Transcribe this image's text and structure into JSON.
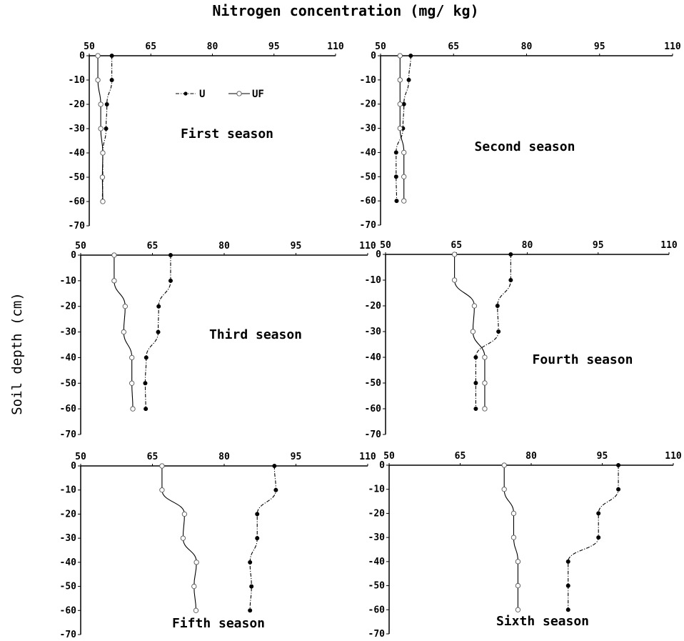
{
  "figure_title": "Nitrogen concentration (mg/ kg)",
  "ylabel": "Soil depth (cm)",
  "chart_data": [
    {
      "type": "line",
      "title": "First season",
      "x_ticks": [
        50,
        65,
        80,
        95,
        110
      ],
      "y_ticks": [
        0,
        -10,
        -20,
        -30,
        -40,
        -50,
        -60,
        -70
      ],
      "xlim": [
        50,
        110
      ],
      "ylim": [
        -70,
        0
      ],
      "x_axis_position": "top",
      "grid": false,
      "legend": [
        "U",
        "UF"
      ],
      "legend_position": "top-center",
      "series": [
        {
          "name": "U",
          "style": "dash-dot, filled markers",
          "x": [
            55.5,
            55.5,
            54.3,
            54.1,
            53.3,
            53.3,
            53.2
          ],
          "y": [
            0,
            -10,
            -20,
            -30,
            -40,
            -50,
            -60
          ]
        },
        {
          "name": "UF",
          "style": "solid, hollow markers",
          "x": [
            52.1,
            52.1,
            52.8,
            52.8,
            53.3,
            53.2,
            53.3
          ],
          "y": [
            0,
            -10,
            -20,
            -30,
            -40,
            -50,
            -60
          ]
        }
      ]
    },
    {
      "type": "line",
      "title": "Second season",
      "x_ticks": [
        50,
        65,
        80,
        95,
        110
      ],
      "y_ticks": [
        0,
        -10,
        -20,
        -30,
        -40,
        -50,
        -60,
        -70
      ],
      "xlim": [
        50,
        110
      ],
      "ylim": [
        -70,
        0
      ],
      "x_axis_position": "top",
      "grid": false,
      "series": [
        {
          "name": "U",
          "style": "dash-dot, filled markers",
          "x": [
            56.2,
            55.8,
            54.8,
            54.6,
            53.2,
            53.2,
            53.3
          ],
          "y": [
            0,
            -10,
            -20,
            -30,
            -40,
            -50,
            -60
          ]
        },
        {
          "name": "UF",
          "style": "solid, hollow markers",
          "x": [
            54.0,
            54.0,
            54.0,
            54.0,
            54.8,
            54.8,
            54.8
          ],
          "y": [
            0,
            -10,
            -20,
            -30,
            -40,
            -50,
            -60
          ]
        }
      ]
    },
    {
      "type": "line",
      "title": "Third season",
      "x_ticks": [
        50,
        65,
        80,
        95,
        110
      ],
      "y_ticks": [
        0,
        -10,
        -20,
        -30,
        -40,
        -50,
        -60,
        -70
      ],
      "xlim": [
        50,
        110
      ],
      "ylim": [
        -70,
        0
      ],
      "x_axis_position": "top",
      "grid": false,
      "series": [
        {
          "name": "U",
          "style": "dash-dot, filled markers",
          "x": [
            68.8,
            68.8,
            66.3,
            66.2,
            63.7,
            63.5,
            63.6
          ],
          "y": [
            0,
            -10,
            -20,
            -30,
            -40,
            -50,
            -60
          ]
        },
        {
          "name": "UF",
          "style": "solid, hollow markers",
          "x": [
            57.0,
            57.0,
            59.3,
            59.0,
            60.7,
            60.7,
            60.9
          ],
          "y": [
            0,
            -10,
            -20,
            -30,
            -40,
            -50,
            -60
          ]
        }
      ]
    },
    {
      "type": "line",
      "title": "Fourth season",
      "x_ticks": [
        50,
        65,
        80,
        95,
        110
      ],
      "y_ticks": [
        0,
        -10,
        -20,
        -30,
        -40,
        -50,
        -60,
        -70
      ],
      "xlim": [
        50,
        110
      ],
      "ylim": [
        -70,
        0
      ],
      "x_axis_position": "top",
      "grid": false,
      "series": [
        {
          "name": "U",
          "style": "dash-dot, filled markers",
          "x": [
            76.5,
            76.5,
            73.7,
            73.9,
            69.1,
            69.1,
            69.1
          ],
          "y": [
            0,
            -10,
            -20,
            -30,
            -40,
            -50,
            -60
          ]
        },
        {
          "name": "UF",
          "style": "solid, hollow markers",
          "x": [
            64.6,
            64.6,
            68.8,
            68.5,
            71.0,
            71.0,
            71.0
          ],
          "y": [
            0,
            -10,
            -20,
            -30,
            -40,
            -50,
            -60
          ]
        }
      ]
    },
    {
      "type": "line",
      "title": "Fifth season",
      "x_ticks": [
        50,
        65,
        80,
        95,
        110
      ],
      "y_ticks": [
        0,
        -10,
        -20,
        -30,
        -40,
        -50,
        -60,
        -70
      ],
      "xlim": [
        50,
        110
      ],
      "ylim": [
        -70,
        0
      ],
      "x_axis_position": "top",
      "grid": false,
      "series": [
        {
          "name": "U",
          "style": "dash-dot, filled markers",
          "x": [
            90.5,
            90.8,
            86.9,
            86.9,
            85.4,
            85.7,
            85.4
          ],
          "y": [
            0,
            -10,
            -20,
            -30,
            -40,
            -50,
            -60
          ]
        },
        {
          "name": "UF",
          "style": "solid, hollow markers",
          "x": [
            67.0,
            67.0,
            71.7,
            71.4,
            74.2,
            73.7,
            74.1
          ],
          "y": [
            0,
            -10,
            -20,
            -30,
            -40,
            -50,
            -60
          ]
        }
      ]
    },
    {
      "type": "line",
      "title": "Sixth season",
      "x_ticks": [
        50,
        65,
        80,
        95,
        110
      ],
      "y_ticks": [
        0,
        -10,
        -20,
        -30,
        -40,
        -50,
        -60,
        -70
      ],
      "xlim": [
        50,
        110
      ],
      "ylim": [
        -70,
        0
      ],
      "x_axis_position": "top",
      "grid": false,
      "series": [
        {
          "name": "U",
          "style": "dash-dot, filled markers",
          "x": [
            98.4,
            98.4,
            94.2,
            94.2,
            87.8,
            87.8,
            87.8
          ],
          "y": [
            0,
            -10,
            -20,
            -30,
            -40,
            -50,
            -60
          ]
        },
        {
          "name": "UF",
          "style": "solid, hollow markers",
          "x": [
            74.3,
            74.3,
            76.3,
            76.3,
            77.2,
            77.2,
            77.2
          ],
          "y": [
            0,
            -10,
            -20,
            -30,
            -40,
            -50,
            -60
          ]
        }
      ]
    }
  ]
}
